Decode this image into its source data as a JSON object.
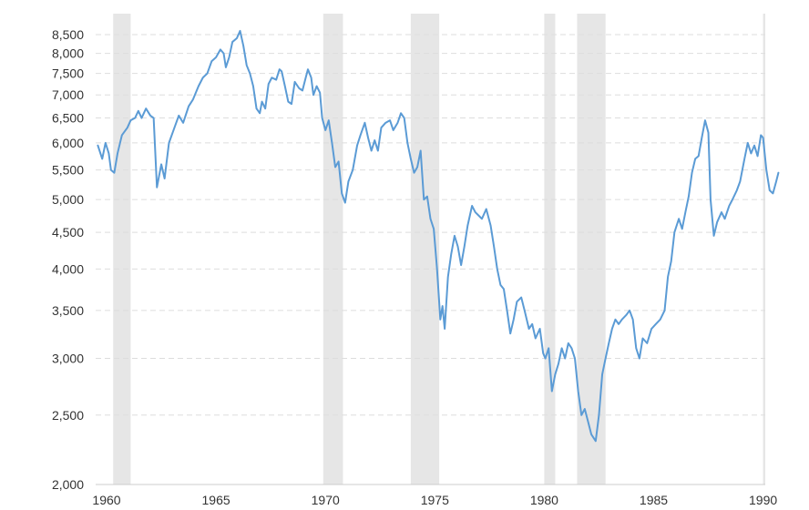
{
  "chart_data": {
    "type": "line",
    "title": "",
    "xlabel": "",
    "ylabel": "",
    "x_scale": "linear (years)",
    "y_scale": "log",
    "xlim": [
      1959.5,
      1990.1
    ],
    "ylim": [
      2000,
      8700
    ],
    "grid": true,
    "legend": "none",
    "line_color": "#5b9bd5",
    "band_color": "#e6e6e6",
    "x_ticks": [
      {
        "value": 1960,
        "label": "1960"
      },
      {
        "value": 1965,
        "label": "1965"
      },
      {
        "value": 1970,
        "label": "1970"
      },
      {
        "value": 1975,
        "label": "1975"
      },
      {
        "value": 1980,
        "label": "1980"
      },
      {
        "value": 1985,
        "label": "1985"
      },
      {
        "value": 1990,
        "label": "1990"
      }
    ],
    "y_ticks": [
      {
        "value": 2000,
        "label": "2,000"
      },
      {
        "value": 2500,
        "label": "2,500"
      },
      {
        "value": 3000,
        "label": "3,000"
      },
      {
        "value": 3500,
        "label": "3,500"
      },
      {
        "value": 4000,
        "label": "4,000"
      },
      {
        "value": 4500,
        "label": "4,500"
      },
      {
        "value": 5000,
        "label": "5,000"
      },
      {
        "value": 5500,
        "label": "5,500"
      },
      {
        "value": 6000,
        "label": "6,000"
      },
      {
        "value": 6500,
        "label": "6,500"
      },
      {
        "value": 7000,
        "label": "7,000"
      },
      {
        "value": 7500,
        "label": "7,500"
      },
      {
        "value": 8000,
        "label": "8,000"
      },
      {
        "value": 8500,
        "label": "8,500"
      }
    ],
    "recessions": [
      [
        1960.3,
        1961.1
      ],
      [
        1969.9,
        1970.8
      ],
      [
        1973.9,
        1975.2
      ],
      [
        1980.0,
        1980.5
      ],
      [
        1981.5,
        1982.8
      ],
      [
        1990.0,
        1990.1
      ]
    ],
    "series": [
      {
        "values": [
          [
            1959.6,
            5950
          ],
          [
            1959.8,
            5700
          ],
          [
            1959.95,
            6000
          ],
          [
            1960.1,
            5800
          ],
          [
            1960.2,
            5500
          ],
          [
            1960.35,
            5450
          ],
          [
            1960.5,
            5800
          ],
          [
            1960.7,
            6150
          ],
          [
            1960.95,
            6300
          ],
          [
            1961.1,
            6450
          ],
          [
            1961.3,
            6500
          ],
          [
            1961.45,
            6650
          ],
          [
            1961.6,
            6500
          ],
          [
            1961.8,
            6700
          ],
          [
            1962.0,
            6550
          ],
          [
            1962.15,
            6500
          ],
          [
            1962.3,
            5200
          ],
          [
            1962.5,
            5600
          ],
          [
            1962.65,
            5350
          ],
          [
            1962.85,
            6000
          ],
          [
            1963.1,
            6300
          ],
          [
            1963.3,
            6550
          ],
          [
            1963.5,
            6400
          ],
          [
            1963.75,
            6750
          ],
          [
            1963.95,
            6900
          ],
          [
            1964.2,
            7200
          ],
          [
            1964.4,
            7400
          ],
          [
            1964.6,
            7500
          ],
          [
            1964.8,
            7800
          ],
          [
            1965.0,
            7900
          ],
          [
            1965.2,
            8100
          ],
          [
            1965.35,
            8000
          ],
          [
            1965.45,
            7650
          ],
          [
            1965.6,
            7900
          ],
          [
            1965.75,
            8300
          ],
          [
            1965.95,
            8400
          ],
          [
            1966.1,
            8600
          ],
          [
            1966.25,
            8200
          ],
          [
            1966.4,
            7700
          ],
          [
            1966.55,
            7500
          ],
          [
            1966.7,
            7200
          ],
          [
            1966.85,
            6700
          ],
          [
            1967.0,
            6600
          ],
          [
            1967.1,
            6850
          ],
          [
            1967.25,
            6700
          ],
          [
            1967.4,
            7250
          ],
          [
            1967.55,
            7400
          ],
          [
            1967.75,
            7350
          ],
          [
            1967.9,
            7600
          ],
          [
            1968.0,
            7550
          ],
          [
            1968.15,
            7200
          ],
          [
            1968.3,
            6850
          ],
          [
            1968.45,
            6800
          ],
          [
            1968.6,
            7300
          ],
          [
            1968.8,
            7150
          ],
          [
            1968.95,
            7100
          ],
          [
            1969.1,
            7400
          ],
          [
            1969.2,
            7600
          ],
          [
            1969.35,
            7400
          ],
          [
            1969.45,
            7000
          ],
          [
            1969.6,
            7200
          ],
          [
            1969.75,
            7050
          ],
          [
            1969.85,
            6500
          ],
          [
            1970.0,
            6250
          ],
          [
            1970.15,
            6450
          ],
          [
            1970.3,
            6000
          ],
          [
            1970.45,
            5550
          ],
          [
            1970.6,
            5650
          ],
          [
            1970.75,
            5100
          ],
          [
            1970.9,
            4950
          ],
          [
            1971.05,
            5300
          ],
          [
            1971.25,
            5500
          ],
          [
            1971.45,
            5950
          ],
          [
            1971.6,
            6150
          ],
          [
            1971.8,
            6400
          ],
          [
            1971.95,
            6100
          ],
          [
            1972.1,
            5850
          ],
          [
            1972.25,
            6050
          ],
          [
            1972.4,
            5850
          ],
          [
            1972.55,
            6300
          ],
          [
            1972.75,
            6400
          ],
          [
            1972.95,
            6450
          ],
          [
            1973.1,
            6250
          ],
          [
            1973.3,
            6400
          ],
          [
            1973.45,
            6600
          ],
          [
            1973.6,
            6500
          ],
          [
            1973.75,
            6000
          ],
          [
            1973.9,
            5700
          ],
          [
            1974.05,
            5450
          ],
          [
            1974.2,
            5550
          ],
          [
            1974.35,
            5850
          ],
          [
            1974.5,
            5000
          ],
          [
            1974.65,
            5050
          ],
          [
            1974.8,
            4700
          ],
          [
            1974.95,
            4550
          ],
          [
            1975.1,
            4000
          ],
          [
            1975.25,
            3400
          ],
          [
            1975.35,
            3550
          ],
          [
            1975.45,
            3300
          ],
          [
            1975.6,
            3900
          ],
          [
            1975.75,
            4200
          ],
          [
            1975.9,
            4450
          ],
          [
            1976.05,
            4300
          ],
          [
            1976.2,
            4050
          ],
          [
            1976.35,
            4300
          ],
          [
            1976.5,
            4600
          ],
          [
            1976.7,
            4900
          ],
          [
            1976.85,
            4800
          ],
          [
            1977.0,
            4750
          ],
          [
            1977.15,
            4700
          ],
          [
            1977.35,
            4850
          ],
          [
            1977.55,
            4600
          ],
          [
            1977.7,
            4300
          ],
          [
            1977.85,
            4000
          ],
          [
            1978.0,
            3800
          ],
          [
            1978.15,
            3750
          ],
          [
            1978.3,
            3500
          ],
          [
            1978.45,
            3250
          ],
          [
            1978.6,
            3400
          ],
          [
            1978.75,
            3600
          ],
          [
            1978.95,
            3650
          ],
          [
            1979.1,
            3500
          ],
          [
            1979.3,
            3300
          ],
          [
            1979.45,
            3350
          ],
          [
            1979.6,
            3200
          ],
          [
            1979.8,
            3300
          ],
          [
            1979.95,
            3050
          ],
          [
            1980.05,
            3000
          ],
          [
            1980.2,
            3100
          ],
          [
            1980.35,
            2700
          ],
          [
            1980.5,
            2850
          ],
          [
            1980.65,
            2950
          ],
          [
            1980.8,
            3100
          ],
          [
            1980.95,
            3000
          ],
          [
            1981.1,
            3150
          ],
          [
            1981.25,
            3100
          ],
          [
            1981.4,
            3000
          ],
          [
            1981.55,
            2700
          ],
          [
            1981.7,
            2500
          ],
          [
            1981.85,
            2550
          ],
          [
            1982.0,
            2450
          ],
          [
            1982.15,
            2350
          ],
          [
            1982.35,
            2300
          ],
          [
            1982.5,
            2500
          ],
          [
            1982.65,
            2850
          ],
          [
            1982.8,
            3000
          ],
          [
            1982.95,
            3150
          ],
          [
            1983.1,
            3300
          ],
          [
            1983.25,
            3400
          ],
          [
            1983.4,
            3350
          ],
          [
            1983.55,
            3400
          ],
          [
            1983.75,
            3450
          ],
          [
            1983.9,
            3500
          ],
          [
            1984.05,
            3400
          ],
          [
            1984.2,
            3100
          ],
          [
            1984.35,
            3000
          ],
          [
            1984.5,
            3200
          ],
          [
            1984.7,
            3150
          ],
          [
            1984.9,
            3300
          ],
          [
            1985.1,
            3350
          ],
          [
            1985.3,
            3400
          ],
          [
            1985.5,
            3500
          ],
          [
            1985.65,
            3900
          ],
          [
            1985.8,
            4100
          ],
          [
            1985.95,
            4500
          ],
          [
            1986.15,
            4700
          ],
          [
            1986.3,
            4550
          ],
          [
            1986.45,
            4800
          ],
          [
            1986.6,
            5050
          ],
          [
            1986.75,
            5450
          ],
          [
            1986.9,
            5700
          ],
          [
            1987.05,
            5750
          ],
          [
            1987.2,
            6100
          ],
          [
            1987.35,
            6450
          ],
          [
            1987.5,
            6200
          ],
          [
            1987.6,
            5000
          ],
          [
            1987.75,
            4450
          ],
          [
            1987.9,
            4650
          ],
          [
            1988.1,
            4800
          ],
          [
            1988.25,
            4700
          ],
          [
            1988.45,
            4900
          ],
          [
            1988.6,
            5000
          ],
          [
            1988.8,
            5150
          ],
          [
            1988.95,
            5300
          ],
          [
            1989.15,
            5700
          ],
          [
            1989.3,
            6000
          ],
          [
            1989.45,
            5800
          ],
          [
            1989.6,
            5950
          ],
          [
            1989.75,
            5750
          ],
          [
            1989.9,
            6150
          ],
          [
            1990.0,
            6100
          ],
          [
            1990.15,
            5500
          ],
          [
            1990.3,
            5150
          ],
          [
            1990.45,
            5100
          ],
          [
            1990.6,
            5300
          ],
          [
            1990.7,
            5450
          ]
        ]
      }
    ]
  }
}
